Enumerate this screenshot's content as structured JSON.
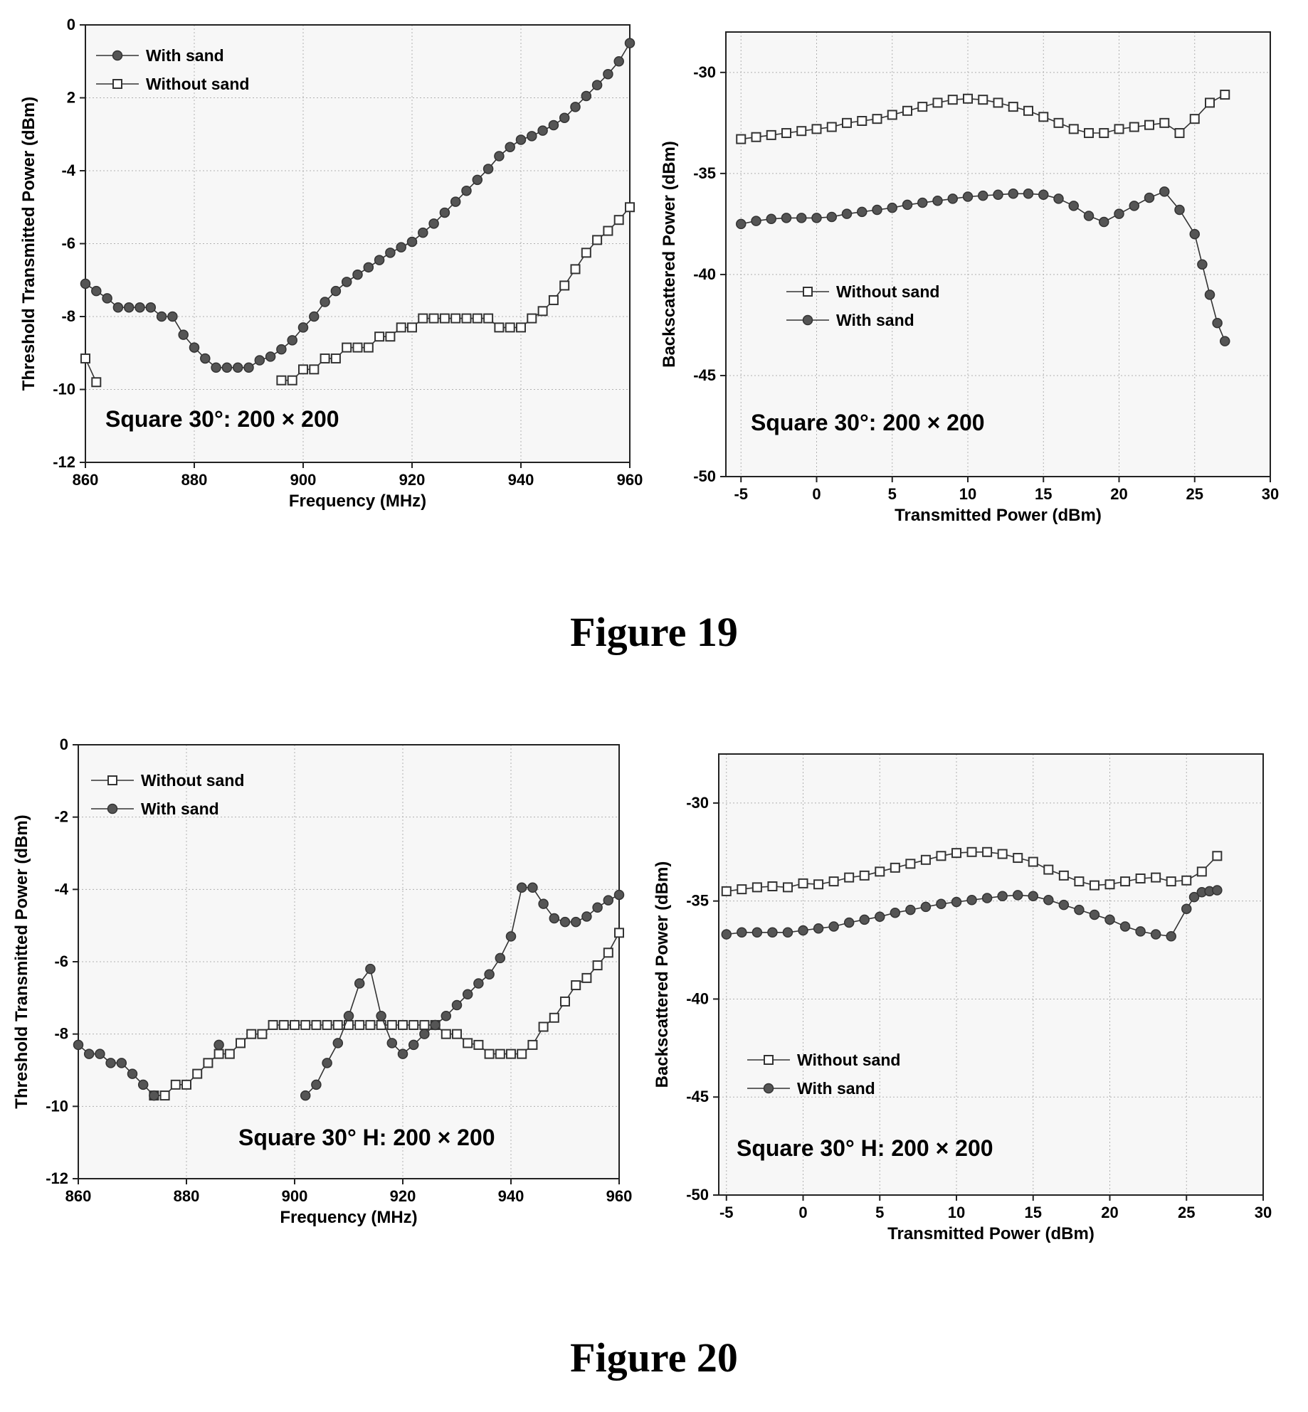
{
  "figures": [
    {
      "caption": "Figure 19"
    },
    {
      "caption": "Figure 20"
    }
  ],
  "chart_data": [
    {
      "type": "line",
      "xlabel": "Frequency (MHz)",
      "ylabel": "Threshold Transmitted Power (dBm)",
      "xlim": [
        860,
        960
      ],
      "ylim": [
        -12,
        0
      ],
      "xticks": [
        860,
        880,
        900,
        920,
        940,
        960
      ],
      "yticks": [
        0,
        -2,
        -4,
        -6,
        -8,
        -10,
        -12
      ],
      "ytick_labels": [
        "0",
        "2",
        "-4",
        "-6",
        "-8",
        "-10",
        "-12"
      ],
      "grid": true,
      "legend_position": "top-left",
      "annotation": "Square 30°: 200 × 200",
      "series": [
        {
          "name": "With sand",
          "marker": "filled-circle",
          "x": [
            860,
            862,
            864,
            866,
            868,
            870,
            872,
            874,
            876,
            878,
            880,
            882,
            884,
            886,
            888,
            890,
            892,
            894,
            896,
            898,
            900,
            902,
            904,
            906,
            908,
            910,
            912,
            914,
            916,
            918,
            920,
            922,
            924,
            926,
            928,
            930,
            932,
            934,
            936,
            938,
            940,
            942,
            944,
            946,
            948,
            950,
            952,
            954,
            956,
            958,
            960
          ],
          "y": [
            -7.1,
            -7.3,
            -7.5,
            -7.75,
            -7.75,
            -7.75,
            -7.75,
            -8.0,
            -8.0,
            -8.5,
            -8.85,
            -9.15,
            -9.4,
            -9.4,
            -9.4,
            -9.4,
            -9.2,
            -9.1,
            -8.9,
            -8.65,
            -8.3,
            -8.0,
            -7.6,
            -7.3,
            -7.05,
            -6.85,
            -6.65,
            -6.45,
            -6.25,
            -6.1,
            -5.95,
            -5.7,
            -5.45,
            -5.15,
            -4.85,
            -4.55,
            -4.25,
            -3.95,
            -3.6,
            -3.35,
            -3.15,
            -3.05,
            -2.9,
            -2.75,
            -2.55,
            -2.25,
            -1.95,
            -1.65,
            -1.35,
            -1.0,
            -0.5
          ]
        },
        {
          "name": "Without sand",
          "marker": "open-square",
          "segments": [
            {
              "x": [
                860,
                862
              ],
              "y": [
                -9.15,
                -9.8
              ]
            },
            {
              "x": [
                896,
                898,
                900,
                902,
                904,
                906,
                908,
                910,
                912,
                914,
                916,
                918,
                920,
                922,
                924,
                926,
                928,
                930,
                932,
                934,
                936,
                938,
                940,
                942,
                944,
                946,
                948,
                950,
                952,
                954,
                956,
                958,
                960
              ],
              "y": [
                -9.75,
                -9.75,
                -9.45,
                -9.45,
                -9.15,
                -9.15,
                -8.85,
                -8.85,
                -8.85,
                -8.55,
                -8.55,
                -8.3,
                -8.3,
                -8.05,
                -8.05,
                -8.05,
                -8.05,
                -8.05,
                -8.05,
                -8.05,
                -8.3,
                -8.3,
                -8.3,
                -8.05,
                -7.85,
                -7.55,
                -7.15,
                -6.7,
                -6.25,
                -5.9,
                -5.65,
                -5.35,
                -5.0
              ]
            }
          ]
        }
      ]
    },
    {
      "type": "line",
      "xlabel": "Transmitted Power (dBm)",
      "ylabel": "Backscattered Power (dBm)",
      "xlim": [
        -6,
        30
      ],
      "ylim": [
        -50,
        -28
      ],
      "xticks": [
        -5,
        0,
        5,
        10,
        15,
        20,
        25,
        30
      ],
      "yticks": [
        -30,
        -35,
        -40,
        -45,
        -50
      ],
      "grid": true,
      "legend_position": "center-left",
      "annotation": "Square 30°: 200 × 200",
      "series": [
        {
          "name": "Without sand",
          "marker": "open-square",
          "x": [
            -5,
            -4,
            -3,
            -2,
            -1,
            0,
            1,
            2,
            3,
            4,
            5,
            6,
            7,
            8,
            9,
            10,
            11,
            12,
            13,
            14,
            15,
            16,
            17,
            18,
            19,
            20,
            21,
            22,
            23,
            24,
            25,
            26,
            27
          ],
          "y": [
            -33.3,
            -33.2,
            -33.1,
            -33.0,
            -32.9,
            -32.8,
            -32.7,
            -32.5,
            -32.4,
            -32.3,
            -32.1,
            -31.9,
            -31.7,
            -31.5,
            -31.35,
            -31.3,
            -31.35,
            -31.5,
            -31.7,
            -31.9,
            -32.2,
            -32.5,
            -32.8,
            -33.0,
            -33.0,
            -32.8,
            -32.7,
            -32.6,
            -32.5,
            -33.0,
            -32.3,
            -31.5,
            -31.1
          ]
        },
        {
          "name": "With sand",
          "marker": "filled-circle",
          "x": [
            -5,
            -4,
            -3,
            -2,
            -1,
            0,
            1,
            2,
            3,
            4,
            5,
            6,
            7,
            8,
            9,
            10,
            11,
            12,
            13,
            14,
            15,
            16,
            17,
            18,
            19,
            20,
            21,
            22,
            23,
            24,
            25,
            25.5,
            26,
            26.5,
            27
          ],
          "y": [
            -37.5,
            -37.35,
            -37.25,
            -37.2,
            -37.2,
            -37.2,
            -37.15,
            -37.0,
            -36.9,
            -36.8,
            -36.7,
            -36.55,
            -36.45,
            -36.35,
            -36.25,
            -36.15,
            -36.1,
            -36.05,
            -36.0,
            -36.0,
            -36.05,
            -36.25,
            -36.6,
            -37.1,
            -37.4,
            -37.0,
            -36.6,
            -36.2,
            -35.9,
            -36.8,
            -38.0,
            -39.5,
            -41.0,
            -42.4,
            -43.3
          ]
        }
      ]
    },
    {
      "type": "line",
      "xlabel": "Frequency (MHz)",
      "ylabel": "Threshold Transmitted Power (dBm)",
      "xlim": [
        860,
        960
      ],
      "ylim": [
        -12,
        0
      ],
      "xticks": [
        860,
        880,
        900,
        920,
        940,
        960
      ],
      "yticks": [
        0,
        -2,
        -4,
        -6,
        -8,
        -10,
        -12
      ],
      "ytick_labels": [
        "0",
        "-2",
        "-4",
        "-6",
        "-8",
        "-10",
        "-12"
      ],
      "grid": true,
      "legend_position": "top-left",
      "annotation": "Square 30° H: 200 × 200",
      "series": [
        {
          "name": "Without sand",
          "marker": "open-square",
          "x": [
            874,
            876,
            878,
            880,
            882,
            884,
            886,
            888,
            890,
            892,
            894,
            896,
            898,
            900,
            902,
            904,
            906,
            908,
            910,
            912,
            914,
            916,
            918,
            920,
            922,
            924,
            926,
            928,
            930,
            932,
            934,
            936,
            938,
            940,
            942,
            944,
            946,
            948,
            950,
            952,
            954,
            956,
            958,
            960
          ],
          "y": [
            -9.7,
            -9.7,
            -9.4,
            -9.4,
            -9.1,
            -8.8,
            -8.55,
            -8.55,
            -8.25,
            -8.0,
            -8.0,
            -7.75,
            -7.75,
            -7.75,
            -7.75,
            -7.75,
            -7.75,
            -7.75,
            -7.75,
            -7.75,
            -7.75,
            -7.75,
            -7.75,
            -7.75,
            -7.75,
            -7.75,
            -7.75,
            -8.0,
            -8.0,
            -8.25,
            -8.3,
            -8.55,
            -8.55,
            -8.55,
            -8.55,
            -8.3,
            -7.8,
            -7.55,
            -7.1,
            -6.65,
            -6.45,
            -6.1,
            -5.75,
            -5.2
          ]
        },
        {
          "name": "With sand",
          "marker": "filled-circle",
          "segments": [
            {
              "x": [
                860,
                862,
                864,
                866,
                868,
                870,
                872,
                874
              ],
              "y": [
                -8.3,
                -8.55,
                -8.55,
                -8.8,
                -8.8,
                -9.1,
                -9.4,
                -9.7
              ]
            },
            {
              "x": [
                886
              ],
              "y": [
                -8.3
              ]
            },
            {
              "x": [
                902,
                904,
                906,
                908,
                910,
                912,
                914,
                916,
                918,
                920,
                922,
                924,
                926,
                928,
                930,
                932,
                934,
                936,
                938,
                940,
                942,
                944,
                946,
                948,
                950,
                952,
                954,
                956,
                958,
                960
              ],
              "y": [
                -9.7,
                -9.4,
                -8.8,
                -8.25,
                -7.5,
                -6.6,
                -6.2,
                -7.5,
                -8.25,
                -8.55,
                -8.3,
                -8.0,
                -7.75,
                -7.5,
                -7.2,
                -6.9,
                -6.6,
                -6.35,
                -5.9,
                -5.3,
                -3.95,
                -3.95,
                -4.4,
                -4.8,
                -4.9,
                -4.9,
                -4.75,
                -4.5,
                -4.3,
                -4.15
              ]
            }
          ]
        }
      ]
    },
    {
      "type": "line",
      "xlabel": "Transmitted Power (dBm)",
      "ylabel": "Backscattered Power (dBm)",
      "xlim": [
        -5.5,
        30
      ],
      "ylim": [
        -50,
        -27.5
      ],
      "xticks": [
        -5,
        0,
        5,
        10,
        15,
        20,
        25,
        30
      ],
      "yticks": [
        -30,
        -35,
        -40,
        -45,
        -50
      ],
      "grid": true,
      "legend_position": "center-left",
      "annotation": "Square 30° H: 200 × 200",
      "series": [
        {
          "name": "Without sand",
          "marker": "open-square",
          "x": [
            -5,
            -4,
            -3,
            -2,
            -1,
            0,
            1,
            2,
            3,
            4,
            5,
            6,
            7,
            8,
            9,
            10,
            11,
            12,
            13,
            14,
            15,
            16,
            17,
            18,
            19,
            20,
            21,
            22,
            23,
            24,
            25,
            26,
            27
          ],
          "y": [
            -34.5,
            -34.4,
            -34.3,
            -34.25,
            -34.3,
            -34.1,
            -34.15,
            -34.0,
            -33.8,
            -33.7,
            -33.5,
            -33.3,
            -33.1,
            -32.9,
            -32.7,
            -32.55,
            -32.5,
            -32.5,
            -32.6,
            -32.8,
            -33.0,
            -33.4,
            -33.7,
            -34.0,
            -34.2,
            -34.15,
            -34.0,
            -33.85,
            -33.8,
            -34.0,
            -33.95,
            -33.5,
            -32.7
          ]
        },
        {
          "name": "With sand",
          "marker": "filled-circle",
          "x": [
            -5,
            -4,
            -3,
            -2,
            -1,
            0,
            1,
            2,
            3,
            4,
            5,
            6,
            7,
            8,
            9,
            10,
            11,
            12,
            13,
            14,
            15,
            16,
            17,
            18,
            19,
            20,
            21,
            22,
            23,
            24,
            25,
            25.5,
            26,
            26.5,
            27
          ],
          "y": [
            -36.7,
            -36.6,
            -36.6,
            -36.6,
            -36.6,
            -36.5,
            -36.4,
            -36.3,
            -36.1,
            -35.95,
            -35.8,
            -35.6,
            -35.45,
            -35.3,
            -35.15,
            -35.05,
            -34.95,
            -34.85,
            -34.75,
            -34.7,
            -34.75,
            -34.95,
            -35.2,
            -35.45,
            -35.7,
            -35.95,
            -36.3,
            -36.55,
            -36.7,
            -36.8,
            -35.4,
            -34.8,
            -34.55,
            -34.5,
            -34.45
          ]
        }
      ]
    }
  ]
}
